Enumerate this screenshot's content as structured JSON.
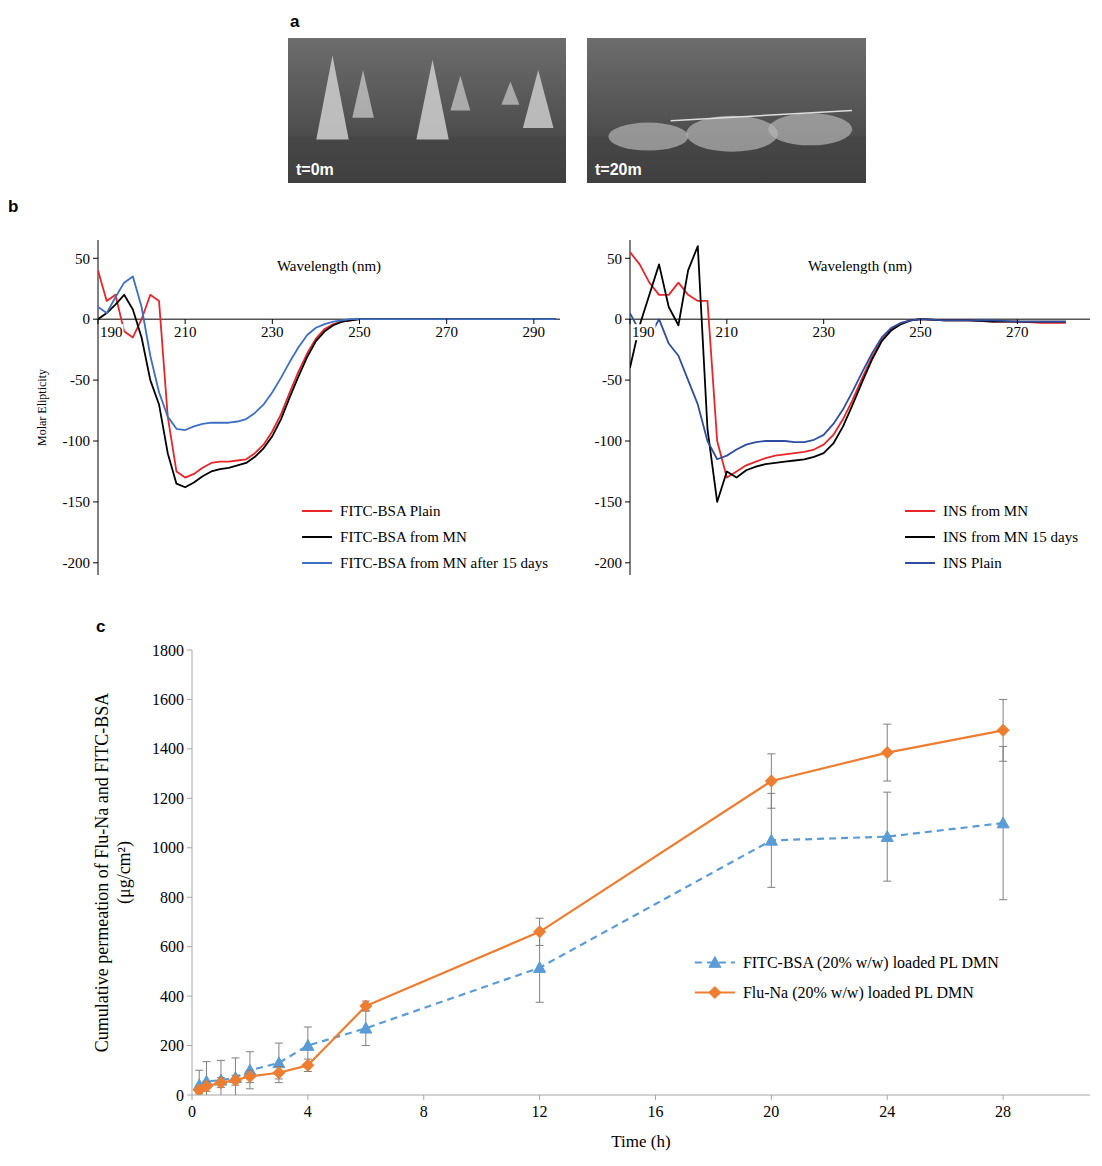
{
  "panel_labels": [
    "a",
    "b",
    "c"
  ],
  "images": [
    {
      "label": "t=0m"
    },
    {
      "label": "t=20m"
    }
  ],
  "chart_data": [
    {
      "type": "line",
      "x_label": "Wavelength (nm)",
      "y_label": "Molar Elipticity",
      "x": [
        190,
        192,
        194,
        196,
        198,
        200,
        202,
        204,
        206,
        208,
        210,
        212,
        214,
        216,
        218,
        220,
        222,
        224,
        226,
        228,
        230,
        232,
        234,
        236,
        238,
        240,
        242,
        244,
        246,
        248,
        250,
        255,
        260,
        265,
        270,
        275,
        280,
        285,
        290,
        295
      ],
      "xlim": [
        190,
        296
      ],
      "xticks": [
        190,
        210,
        230,
        250,
        270,
        290
      ],
      "ylim": [
        -210,
        65
      ],
      "yticks": [
        -200,
        -150,
        -100,
        -50,
        0,
        50
      ],
      "grid": false,
      "legend": "lower right",
      "series": [
        {
          "name": "FITC-BSA Plain",
          "color": "#e8262a",
          "line_style": "solid",
          "values": [
            40,
            15,
            20,
            -10,
            -15,
            0,
            20,
            15,
            -80,
            -125,
            -130,
            -127,
            -122,
            -118,
            -117,
            -117,
            -116,
            -115,
            -110,
            -103,
            -92,
            -78,
            -60,
            -43,
            -28,
            -16,
            -8,
            -4,
            -2,
            -1,
            0,
            0,
            0,
            0,
            0,
            0,
            0,
            0,
            0,
            0
          ]
        },
        {
          "name": "FITC-BSA from MN",
          "color": "#000000",
          "line_style": "solid",
          "values": [
            0,
            5,
            12,
            20,
            8,
            -15,
            -50,
            -70,
            -110,
            -135,
            -138,
            -134,
            -129,
            -125,
            -123,
            -122,
            -120,
            -118,
            -113,
            -106,
            -96,
            -82,
            -64,
            -47,
            -31,
            -18,
            -10,
            -5,
            -2,
            -1,
            0,
            0,
            0,
            0,
            0,
            0,
            0,
            0,
            0,
            0
          ]
        },
        {
          "name": "FITC-BSA from MN after 15 days",
          "color": "#3d6fc0",
          "line_style": "solid",
          "values": [
            10,
            5,
            18,
            30,
            35,
            10,
            -30,
            -60,
            -80,
            -90,
            -91,
            -88,
            -86,
            -85,
            -85,
            -85,
            -84,
            -82,
            -77,
            -70,
            -60,
            -48,
            -35,
            -23,
            -13,
            -7,
            -4,
            -2,
            -1,
            0,
            0,
            0,
            0,
            0,
            0,
            0,
            0,
            0,
            0,
            0
          ]
        }
      ]
    },
    {
      "type": "line",
      "x_label": "Wavelength (nm)",
      "x": [
        190,
        192,
        194,
        196,
        198,
        200,
        202,
        204,
        206,
        208,
        210,
        212,
        214,
        216,
        218,
        220,
        222,
        224,
        226,
        228,
        230,
        232,
        234,
        236,
        238,
        240,
        242,
        244,
        246,
        248,
        250,
        255,
        260,
        265,
        270,
        275,
        280
      ],
      "xlim": [
        190,
        285
      ],
      "xticks": [
        190,
        210,
        230,
        250,
        270
      ],
      "ylim": [
        -210,
        65
      ],
      "yticks": [
        -200,
        -150,
        -100,
        -50,
        0,
        50
      ],
      "grid": false,
      "legend": "lower right",
      "series": [
        {
          "name": "INS from MN",
          "color": "#e8262a",
          "line_style": "solid",
          "values": [
            55,
            45,
            30,
            20,
            20,
            30,
            20,
            15,
            15,
            -100,
            -130,
            -125,
            -120,
            -117,
            -114,
            -112,
            -111,
            -110,
            -109,
            -107,
            -103,
            -95,
            -82,
            -66,
            -48,
            -31,
            -17,
            -8,
            -3,
            -1,
            0,
            -1,
            -1,
            -2,
            -2,
            -3,
            -3
          ]
        },
        {
          "name": "INS from MN 15 days",
          "color": "#000000",
          "line_style": "solid",
          "values": [
            -40,
            -5,
            20,
            45,
            10,
            -5,
            40,
            60,
            -90,
            -150,
            -125,
            -130,
            -124,
            -121,
            -119,
            -118,
            -117,
            -116,
            -115,
            -113,
            -110,
            -102,
            -88,
            -70,
            -51,
            -33,
            -18,
            -9,
            -4,
            -1,
            0,
            -1,
            -1,
            -2,
            -2,
            -2,
            -2
          ]
        },
        {
          "name": "INS Plain",
          "color": "#2f4ea0",
          "line_style": "solid",
          "values": [
            5,
            -10,
            -15,
            0,
            -20,
            -30,
            -50,
            -70,
            -100,
            -115,
            -112,
            -107,
            -103,
            -101,
            -100,
            -100,
            -100,
            -101,
            -101,
            -99,
            -95,
            -86,
            -74,
            -59,
            -43,
            -28,
            -15,
            -7,
            -3,
            -1,
            0,
            -1,
            -1,
            -1,
            -2,
            -2,
            -2
          ]
        }
      ]
    },
    {
      "type": "line",
      "x_label": "Time (h)",
      "y_label": "Cumulative permeation of Flu-Na and FITC-BSA (μg/cm²)",
      "x": [
        0.25,
        0.5,
        1,
        1.5,
        2,
        3,
        4,
        6,
        12,
        20,
        24,
        28
      ],
      "xlim": [
        0,
        31
      ],
      "xticks": [
        0,
        4,
        8,
        12,
        16,
        20,
        24,
        28
      ],
      "ylim": [
        0,
        1800
      ],
      "yticks": [
        0,
        200,
        400,
        600,
        800,
        1000,
        1200,
        1400,
        1600,
        1800
      ],
      "grid": false,
      "legend": "right",
      "series": [
        {
          "name": "FITC-BSA (20% w/w) loaded PL DMN",
          "color": "#5b9bd5",
          "line_style": "dashed",
          "marker": "triangle",
          "values": [
            40,
            55,
            60,
            70,
            100,
            130,
            200,
            270,
            515,
            1030,
            1045,
            1100
          ],
          "errors": [
            60,
            80,
            80,
            80,
            75,
            80,
            75,
            70,
            140,
            190,
            180,
            310
          ]
        },
        {
          "name": "Flu-Na (20% w/w) loaded PL DMN",
          "color": "#ed7d31",
          "line_style": "solid",
          "marker": "diamond",
          "values": [
            20,
            35,
            50,
            60,
            75,
            90,
            120,
            360,
            660,
            1270,
            1385,
            1475
          ],
          "errors": [
            15,
            20,
            20,
            20,
            25,
            25,
            25,
            20,
            55,
            110,
            115,
            125
          ]
        }
      ]
    }
  ]
}
